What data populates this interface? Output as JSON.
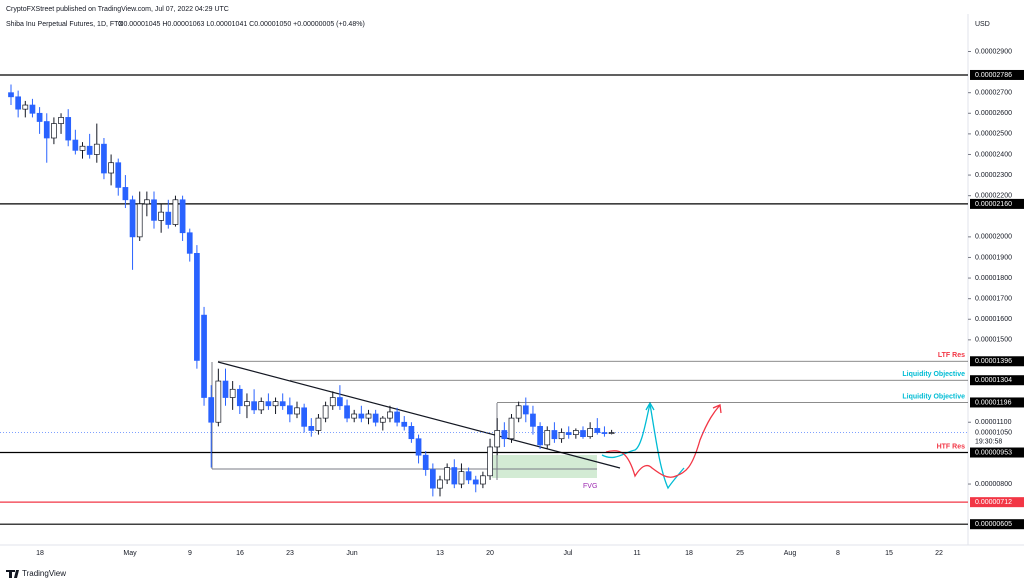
{
  "chart_data": {
    "type": "candlestick",
    "attribution": "CryptoFXStreet published on TradingView.com, Jul 07, 2022 04:29 UTC",
    "title": "Shiba Inu Perpetual Futures, 1D, FTX",
    "ohlc_summary": "O0.00001045 H0.00001063 L0.00001041 C0.00001050 +0.00000005 (+0.48%)",
    "currency": "USD",
    "up_color": "#ffffff",
    "down_color": "#2962ff",
    "outline_color": "#131722",
    "candles": [
      [
        2.7e-05,
        2.74e-05,
        2.64e-05,
        2.68e-05
      ],
      [
        2.68e-05,
        2.71e-05,
        2.58e-05,
        2.62e-05
      ],
      [
        2.62e-05,
        2.66e-05,
        2.58e-05,
        2.64e-05
      ],
      [
        2.64e-05,
        2.67e-05,
        2.58e-05,
        2.6e-05
      ],
      [
        2.6e-05,
        2.63e-05,
        2.5e-05,
        2.56e-05
      ],
      [
        2.56e-05,
        2.6e-05,
        2.36e-05,
        2.48e-05
      ],
      [
        2.48e-05,
        2.58e-05,
        2.45e-05,
        2.55e-05
      ],
      [
        2.55e-05,
        2.6e-05,
        2.5e-05,
        2.58e-05
      ],
      [
        2.58e-05,
        2.62e-05,
        2.44e-05,
        2.47e-05
      ],
      [
        2.47e-05,
        2.52e-05,
        2.4e-05,
        2.42e-05
      ],
      [
        2.42e-05,
        2.46e-05,
        2.38e-05,
        2.44e-05
      ],
      [
        2.44e-05,
        2.5e-05,
        2.38e-05,
        2.4e-05
      ],
      [
        2.4e-05,
        2.55e-05,
        2.36e-05,
        2.45e-05
      ],
      [
        2.45e-05,
        2.48e-05,
        2.28e-05,
        2.31e-05
      ],
      [
        2.31e-05,
        2.4e-05,
        2.25e-05,
        2.36e-05
      ],
      [
        2.36e-05,
        2.38e-05,
        2.2e-05,
        2.24e-05
      ],
      [
        2.24e-05,
        2.3e-05,
        2.14e-05,
        2.18e-05
      ],
      [
        2.18e-05,
        2.2e-05,
        1.84e-05,
        2e-05
      ],
      [
        2e-05,
        2.22e-05,
        1.98e-05,
        2.16e-05
      ],
      [
        2.16e-05,
        2.22e-05,
        2.1e-05,
        2.18e-05
      ],
      [
        2.18e-05,
        2.22e-05,
        2.04e-05,
        2.08e-05
      ],
      [
        2.08e-05,
        2.16e-05,
        2.02e-05,
        2.12e-05
      ],
      [
        2.12e-05,
        2.18e-05,
        2.04e-05,
        2.06e-05
      ],
      [
        2.06e-05,
        2.2e-05,
        2.05e-05,
        2.18e-05
      ],
      [
        2.18e-05,
        2.2e-05,
        1.98e-05,
        2.02e-05
      ],
      [
        2.02e-05,
        2.04e-05,
        1.88e-05,
        1.92e-05
      ],
      [
        1.92e-05,
        1.96e-05,
        1.36e-05,
        1.4e-05
      ],
      [
        1.62e-05,
        1.66e-05,
        1.18e-05,
        1.22e-05
      ],
      [
        1.22e-05,
        1.28e-05,
        8.8e-06,
        1.1e-05
      ],
      [
        1.1e-05,
        1.36e-05,
        1.08e-05,
        1.3e-05
      ],
      [
        1.3e-05,
        1.36e-05,
        1.18e-05,
        1.22e-05
      ],
      [
        1.22e-05,
        1.3e-05,
        1.16e-05,
        1.26e-05
      ],
      [
        1.26e-05,
        1.28e-05,
        1.14e-05,
        1.18e-05
      ],
      [
        1.18e-05,
        1.24e-05,
        1.12e-05,
        1.2e-05
      ],
      [
        1.2e-05,
        1.26e-05,
        1.14e-05,
        1.16e-05
      ],
      [
        1.16e-05,
        1.22e-05,
        1.14e-05,
        1.2e-05
      ],
      [
        1.2e-05,
        1.24e-05,
        1.16e-05,
        1.18e-05
      ],
      [
        1.18e-05,
        1.22e-05,
        1.14e-05,
        1.2e-05
      ],
      [
        1.2e-05,
        1.24e-05,
        1.16e-05,
        1.18e-05
      ],
      [
        1.18e-05,
        1.22e-05,
        1.1e-05,
        1.14e-05
      ],
      [
        1.14e-05,
        1.2e-05,
        1.12e-05,
        1.17e-05
      ],
      [
        1.17e-05,
        1.19e-05,
        1.05e-05,
        1.08e-05
      ],
      [
        1.08e-05,
        1.12e-05,
        1.03e-05,
        1.06e-05
      ],
      [
        1.06e-05,
        1.14e-05,
        1.04e-05,
        1.12e-05
      ],
      [
        1.12e-05,
        1.2e-05,
        1.1e-05,
        1.18e-05
      ],
      [
        1.18e-05,
        1.25e-05,
        1.16e-05,
        1.22e-05
      ],
      [
        1.22e-05,
        1.28e-05,
        1.16e-05,
        1.18e-05
      ],
      [
        1.18e-05,
        1.21e-05,
        1.1e-05,
        1.12e-05
      ],
      [
        1.12e-05,
        1.16e-05,
        1.1e-05,
        1.14e-05
      ],
      [
        1.14e-05,
        1.18e-05,
        1.1e-05,
        1.12e-05
      ],
      [
        1.12e-05,
        1.16e-05,
        1.09e-05,
        1.14e-05
      ],
      [
        1.14e-05,
        1.16e-05,
        1.08e-05,
        1.1e-05
      ],
      [
        1.1e-05,
        1.13e-05,
        1.06e-05,
        1.12e-05
      ],
      [
        1.12e-05,
        1.18e-05,
        1.1e-05,
        1.15e-05
      ],
      [
        1.15e-05,
        1.17e-05,
        1.08e-05,
        1.1e-05
      ],
      [
        1.1e-05,
        1.13e-05,
        1.06e-05,
        1.08e-05
      ],
      [
        1.08e-05,
        1.1e-05,
        1e-05,
        1.02e-05
      ],
      [
        1.02e-05,
        1.04e-05,
        9e-06,
        9.4e-06
      ],
      [
        9.4e-06,
        9.6e-06,
        8.4e-06,
        8.7e-06
      ],
      [
        8.7e-06,
        9e-06,
        7.4e-06,
        7.8e-06
      ],
      [
        7.8e-06,
        8.4e-06,
        7.4e-06,
        8.2e-06
      ],
      [
        8.2e-06,
        9e-06,
        8e-06,
        8.8e-06
      ],
      [
        8.8e-06,
        9.2e-06,
        7.8e-06,
        8e-06
      ],
      [
        8e-06,
        9e-06,
        7.8e-06,
        8.6e-06
      ],
      [
        8.6e-06,
        8.8e-06,
        8e-06,
        8.2e-06
      ],
      [
        8.2e-06,
        8.4e-06,
        7.6e-06,
        8e-06
      ],
      [
        8e-06,
        8.6e-06,
        7.8e-06,
        8.4e-06
      ],
      [
        8.4e-06,
        1.02e-05,
        8.2e-06,
        9.8e-06
      ],
      [
        9.8e-06,
        1.12e-05,
        9.4e-06,
        1.06e-05
      ],
      [
        1.06e-05,
        1.1e-05,
        9.8e-06,
        1.02e-05
      ],
      [
        1.02e-05,
        1.14e-05,
        1e-05,
        1.12e-05
      ],
      [
        1.12e-05,
        1.2e-05,
        1.1e-05,
        1.18e-05
      ],
      [
        1.18e-05,
        1.22e-05,
        1.1e-05,
        1.14e-05
      ],
      [
        1.14e-05,
        1.18e-05,
        1.04e-05,
        1.08e-05
      ],
      [
        1.08e-05,
        1.1e-05,
        9.7e-06,
        9.9e-06
      ],
      [
        9.9e-06,
        1.08e-05,
        9.7e-06,
        1.06e-05
      ],
      [
        1.06e-05,
        1.1e-05,
        1e-05,
        1.02e-05
      ],
      [
        1.02e-05,
        1.07e-05,
        1e-05,
        1.05e-05
      ],
      [
        1.05e-05,
        1.08e-05,
        1.02e-05,
        1.04e-05
      ],
      [
        1.04e-05,
        1.07e-05,
        1.02e-05,
        1.06e-05
      ],
      [
        1.06e-05,
        1.08e-05,
        1.02e-05,
        1.03e-05
      ],
      [
        1.03e-05,
        1.1e-05,
        1.02e-05,
        1.07e-05
      ],
      [
        1.07e-05,
        1.12e-05,
        1.04e-05,
        1.05e-05
      ],
      [
        1.05e-05,
        1.08e-05,
        1.03e-05,
        1.045e-05
      ],
      [
        1.045e-05,
        1.063e-05,
        1.041e-05,
        1.05e-05
      ]
    ],
    "ylim": [
      5.04e-06,
      3.082e-05
    ],
    "yticks": [
      {
        "value": 2.9e-05,
        "label": "0.00002900"
      },
      {
        "value": 2.7e-05,
        "label": "0.00002700"
      },
      {
        "value": 2.6e-05,
        "label": "0.00002600"
      },
      {
        "value": 2.5e-05,
        "label": "0.00002500"
      },
      {
        "value": 2.4e-05,
        "label": "0.00002400"
      },
      {
        "value": 2.3e-05,
        "label": "0.00002300"
      },
      {
        "value": 2.2e-05,
        "label": "0.00002200"
      },
      {
        "value": 2e-05,
        "label": "0.00002000"
      },
      {
        "value": 1.9e-05,
        "label": "0.00001900"
      },
      {
        "value": 1.8e-05,
        "label": "0.00001800"
      },
      {
        "value": 1.7e-05,
        "label": "0.00001700"
      },
      {
        "value": 1.6e-05,
        "label": "0.00001600"
      },
      {
        "value": 1.5e-05,
        "label": "0.00001500"
      },
      {
        "value": 1.1e-05,
        "label": "0.00001100"
      },
      {
        "value": 8e-06,
        "label": "0.00000800"
      }
    ],
    "xticks": [
      "18",
      "May",
      "9",
      "16",
      "23",
      "Jun",
      "13",
      "20",
      "Jul",
      "11",
      "18",
      "25",
      "Aug",
      "8",
      "15",
      "22"
    ],
    "levels": [
      {
        "value": 2.786e-05,
        "label": "0.00002786",
        "color": "#000000"
      },
      {
        "value": 2.16e-05,
        "label": "0.00002160",
        "color": "#000000"
      },
      {
        "value": 1.396e-05,
        "label": "0.00001396",
        "color": "#000000",
        "text": "LTF Res",
        "text_color": "#f23645"
      },
      {
        "value": 1.304e-05,
        "label": "0.00001304",
        "color": "#000000",
        "text": "Liquidity Objective",
        "text_color": "#00bcd4"
      },
      {
        "value": 1.196e-05,
        "label": "0.00001196",
        "color": "#000000",
        "text": "Liquidity Objective",
        "text_color": "#00bcd4"
      },
      {
        "value": 9.53e-06,
        "label": "0.00000953",
        "color": "#000000",
        "text": "HTF Res",
        "text_color": "#f23645"
      },
      {
        "value": 7.12e-06,
        "label": "0.00000712",
        "color": "#f23645"
      },
      {
        "value": 6.05e-06,
        "label": "0.00000605",
        "color": "#000000"
      }
    ],
    "last_price": {
      "value": 1.05e-05,
      "label": "0.00001050",
      "countdown": "19:30:58"
    },
    "fvg_label": "FVG",
    "footer": "TradingView"
  }
}
